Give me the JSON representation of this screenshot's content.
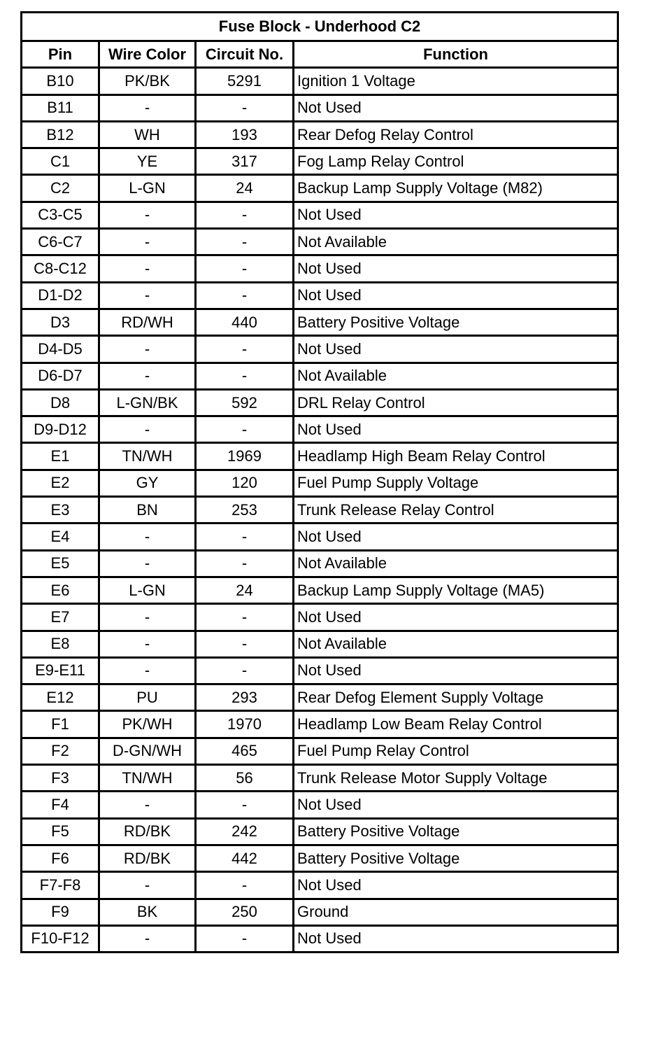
{
  "title": "Fuse Block - Underhood C2",
  "columns": [
    "Pin",
    "Wire Color",
    "Circuit No.",
    "Function"
  ],
  "rows": [
    [
      "B10",
      "PK/BK",
      "5291",
      "Ignition 1 Voltage"
    ],
    [
      "B11",
      "-",
      "-",
      "Not Used"
    ],
    [
      "B12",
      "WH",
      "193",
      "Rear Defog Relay Control"
    ],
    [
      "C1",
      "YE",
      "317",
      "Fog Lamp Relay Control"
    ],
    [
      "C2",
      "L-GN",
      "24",
      "Backup Lamp Supply Voltage (M82)"
    ],
    [
      "C3-C5",
      "-",
      "-",
      "Not Used"
    ],
    [
      "C6-C7",
      "-",
      "-",
      "Not Available"
    ],
    [
      "C8-C12",
      "-",
      "-",
      "Not Used"
    ],
    [
      "D1-D2",
      "-",
      "-",
      "Not Used"
    ],
    [
      "D3",
      "RD/WH",
      "440",
      "Battery Positive Voltage"
    ],
    [
      "D4-D5",
      "-",
      "-",
      "Not Used"
    ],
    [
      "D6-D7",
      "-",
      "-",
      "Not Available"
    ],
    [
      "D8",
      "L-GN/BK",
      "592",
      "DRL Relay Control"
    ],
    [
      "D9-D12",
      "-",
      "-",
      "Not Used"
    ],
    [
      "E1",
      "TN/WH",
      "1969",
      "Headlamp High Beam Relay Control"
    ],
    [
      "E2",
      "GY",
      "120",
      "Fuel Pump Supply Voltage"
    ],
    [
      "E3",
      "BN",
      "253",
      "Trunk Release Relay Control"
    ],
    [
      "E4",
      "-",
      "-",
      "Not Used"
    ],
    [
      "E5",
      "-",
      "-",
      "Not Available"
    ],
    [
      "E6",
      "L-GN",
      "24",
      "Backup Lamp Supply Voltage (MA5)"
    ],
    [
      "E7",
      "-",
      "-",
      "Not Used"
    ],
    [
      "E8",
      "-",
      "-",
      "Not Available"
    ],
    [
      "E9-E11",
      "-",
      "-",
      "Not Used"
    ],
    [
      "E12",
      "PU",
      "293",
      "Rear Defog Element Supply Voltage"
    ],
    [
      "F1",
      "PK/WH",
      "1970",
      "Headlamp Low Beam Relay Control"
    ],
    [
      "F2",
      "D-GN/WH",
      "465",
      "Fuel Pump Relay Control"
    ],
    [
      "F3",
      "TN/WH",
      "56",
      "Trunk Release Motor Supply Voltage"
    ],
    [
      "F4",
      "-",
      "-",
      "Not Used"
    ],
    [
      "F5",
      "RD/BK",
      "242",
      "Battery Positive Voltage"
    ],
    [
      "F6",
      "RD/BK",
      "442",
      "Battery Positive Voltage"
    ],
    [
      "F7-F8",
      "-",
      "-",
      "Not Used"
    ],
    [
      "F9",
      "BK",
      "250",
      "Ground"
    ],
    [
      "F10-F12",
      "-",
      "-",
      "Not Used"
    ]
  ]
}
